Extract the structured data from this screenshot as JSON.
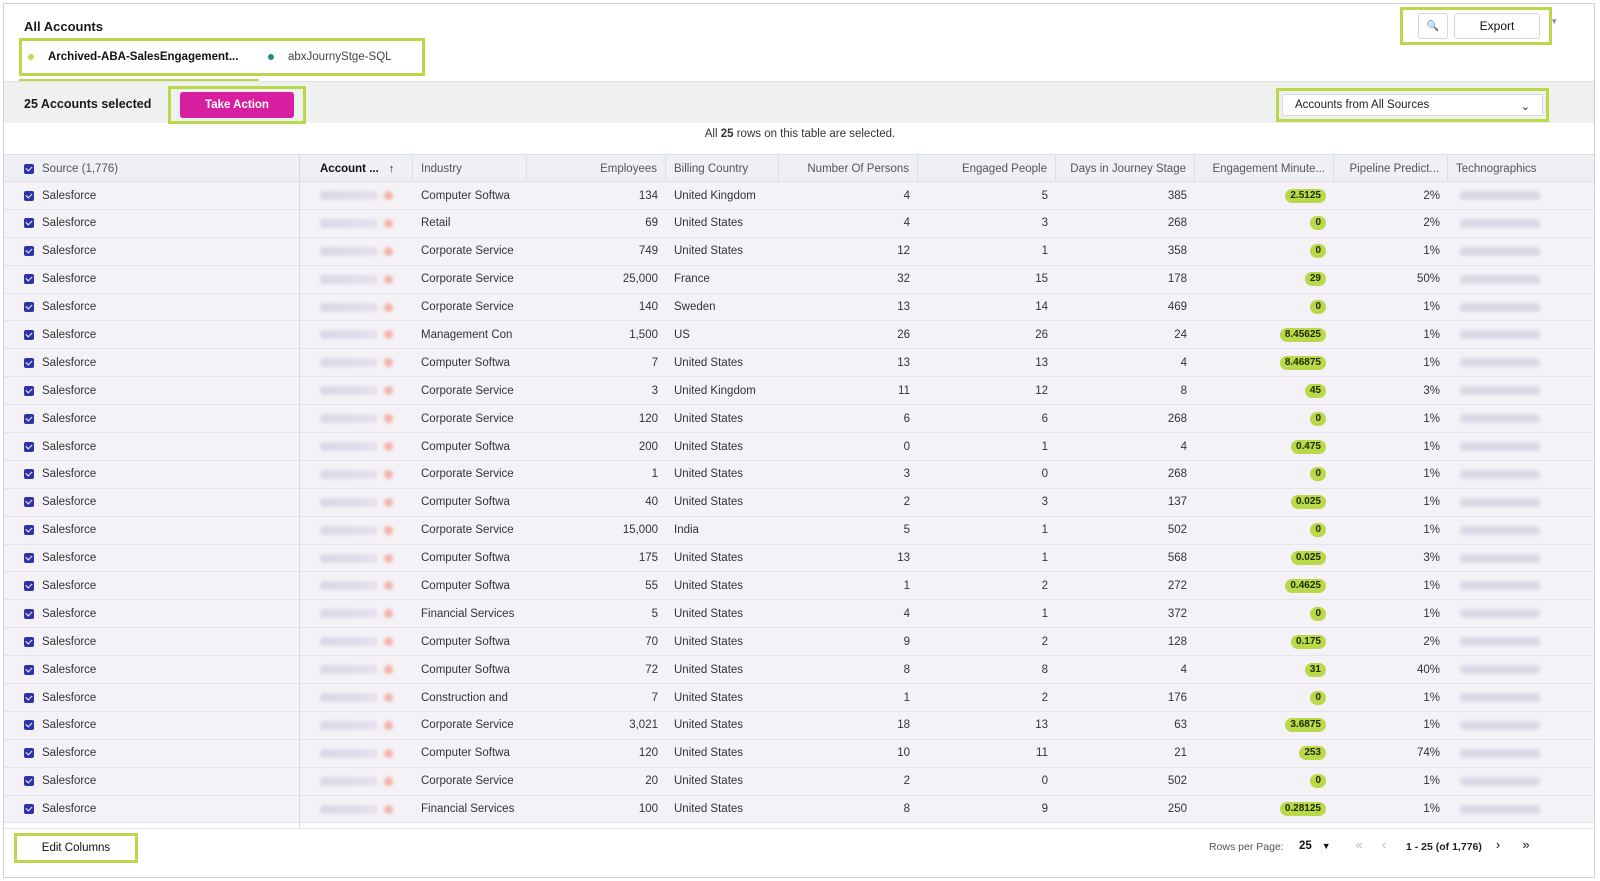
{
  "header": {
    "title": "All Accounts",
    "tabs": [
      {
        "label": "Archived-ABA-SalesEngagement...",
        "dot_color": "#c6d94a",
        "active": true
      },
      {
        "label": "abxJournyStge-SQL",
        "dot_color": "#1f8a8a",
        "active": false
      }
    ],
    "search_icon": "🔍",
    "export_label": "Export",
    "corner_icon": "▾"
  },
  "action_bar": {
    "selected_text": "25 Accounts selected",
    "take_action_label": "Take Action",
    "source_select_value": "Accounts from All Sources",
    "source_select_chevron": "⌄"
  },
  "selection_info": {
    "prefix": "All",
    "count": "25",
    "suffix": "rows on this table are selected."
  },
  "table": {
    "columns": [
      {
        "key": "source",
        "label": "Source (1,776)"
      },
      {
        "key": "account",
        "label": "Account ...",
        "sort_icon": "↑"
      },
      {
        "key": "industry",
        "label": "Industry"
      },
      {
        "key": "employees",
        "label": "Employees"
      },
      {
        "key": "country",
        "label": "Billing Country"
      },
      {
        "key": "persons",
        "label": "Number Of Persons"
      },
      {
        "key": "engaged",
        "label": "Engaged People"
      },
      {
        "key": "days",
        "label": "Days in Journey Stage"
      },
      {
        "key": "minutes",
        "label": "Engagement Minute..."
      },
      {
        "key": "pipeline",
        "label": "Pipeline Predict..."
      },
      {
        "key": "techno",
        "label": "Technographics"
      }
    ],
    "rows": [
      {
        "source": "Salesforce",
        "industry": "Computer Softwa",
        "employees": "134",
        "country": "United Kingdom",
        "persons": "4",
        "engaged": "5",
        "days": "385",
        "minutes": "2.5125",
        "pipeline": "2%"
      },
      {
        "source": "Salesforce",
        "industry": "Retail",
        "employees": "69",
        "country": "United States",
        "persons": "4",
        "engaged": "3",
        "days": "268",
        "minutes": "0",
        "pipeline": "2%"
      },
      {
        "source": "Salesforce",
        "industry": "Corporate Service",
        "employees": "749",
        "country": "United States",
        "persons": "12",
        "engaged": "1",
        "days": "358",
        "minutes": "0",
        "pipeline": "1%"
      },
      {
        "source": "Salesforce",
        "industry": "Corporate Service",
        "employees": "25,000",
        "country": "France",
        "persons": "32",
        "engaged": "15",
        "days": "178",
        "minutes": "29",
        "pipeline": "50%"
      },
      {
        "source": "Salesforce",
        "industry": "Corporate Service",
        "employees": "140",
        "country": "Sweden",
        "persons": "13",
        "engaged": "14",
        "days": "469",
        "minutes": "0",
        "pipeline": "1%"
      },
      {
        "source": "Salesforce",
        "industry": "Management Con",
        "employees": "1,500",
        "country": "US",
        "persons": "26",
        "engaged": "26",
        "days": "24",
        "minutes": "8.45625",
        "pipeline": "1%"
      },
      {
        "source": "Salesforce",
        "industry": "Computer Softwa",
        "employees": "7",
        "country": "United States",
        "persons": "13",
        "engaged": "13",
        "days": "4",
        "minutes": "8.46875",
        "pipeline": "1%"
      },
      {
        "source": "Salesforce",
        "industry": "Corporate Service",
        "employees": "3",
        "country": "United Kingdom",
        "persons": "11",
        "engaged": "12",
        "days": "8",
        "minutes": "45",
        "pipeline": "3%"
      },
      {
        "source": "Salesforce",
        "industry": "Corporate Service",
        "employees": "120",
        "country": "United States",
        "persons": "6",
        "engaged": "6",
        "days": "268",
        "minutes": "0",
        "pipeline": "1%"
      },
      {
        "source": "Salesforce",
        "industry": "Computer Softwa",
        "employees": "200",
        "country": "United States",
        "persons": "0",
        "engaged": "1",
        "days": "4",
        "minutes": "0.475",
        "pipeline": "1%"
      },
      {
        "source": "Salesforce",
        "industry": "Corporate Service",
        "employees": "1",
        "country": "United States",
        "persons": "3",
        "engaged": "0",
        "days": "268",
        "minutes": "0",
        "pipeline": "1%"
      },
      {
        "source": "Salesforce",
        "industry": "Computer Softwa",
        "employees": "40",
        "country": "United States",
        "persons": "2",
        "engaged": "3",
        "days": "137",
        "minutes": "0.025",
        "pipeline": "1%"
      },
      {
        "source": "Salesforce",
        "industry": "Corporate Service",
        "employees": "15,000",
        "country": "India",
        "persons": "5",
        "engaged": "1",
        "days": "502",
        "minutes": "0",
        "pipeline": "1%"
      },
      {
        "source": "Salesforce",
        "industry": "Computer Softwa",
        "employees": "175",
        "country": "United States",
        "persons": "13",
        "engaged": "1",
        "days": "568",
        "minutes": "0.025",
        "pipeline": "3%"
      },
      {
        "source": "Salesforce",
        "industry": "Computer Softwa",
        "employees": "55",
        "country": "United States",
        "persons": "1",
        "engaged": "2",
        "days": "272",
        "minutes": "0.4625",
        "pipeline": "1%"
      },
      {
        "source": "Salesforce",
        "industry": "Financial Services",
        "employees": "5",
        "country": "United States",
        "persons": "4",
        "engaged": "1",
        "days": "372",
        "minutes": "0",
        "pipeline": "1%"
      },
      {
        "source": "Salesforce",
        "industry": "Computer Softwa",
        "employees": "70",
        "country": "United States",
        "persons": "9",
        "engaged": "2",
        "days": "128",
        "minutes": "0.175",
        "pipeline": "2%"
      },
      {
        "source": "Salesforce",
        "industry": "Computer Softwa",
        "employees": "72",
        "country": "United States",
        "persons": "8",
        "engaged": "8",
        "days": "4",
        "minutes": "31",
        "pipeline": "40%"
      },
      {
        "source": "Salesforce",
        "industry": "Construction and",
        "employees": "7",
        "country": "United States",
        "persons": "1",
        "engaged": "2",
        "days": "176",
        "minutes": "0",
        "pipeline": "1%"
      },
      {
        "source": "Salesforce",
        "industry": "Corporate Service",
        "employees": "3,021",
        "country": "United States",
        "persons": "18",
        "engaged": "13",
        "days": "63",
        "minutes": "3.6875",
        "pipeline": "1%"
      },
      {
        "source": "Salesforce",
        "industry": "Computer Softwa",
        "employees": "120",
        "country": "United States",
        "persons": "10",
        "engaged": "11",
        "days": "21",
        "minutes": "253",
        "pipeline": "74%"
      },
      {
        "source": "Salesforce",
        "industry": "Corporate Service",
        "employees": "20",
        "country": "United States",
        "persons": "2",
        "engaged": "0",
        "days": "502",
        "minutes": "0",
        "pipeline": "1%"
      },
      {
        "source": "Salesforce",
        "industry": "Financial Services",
        "employees": "100",
        "country": "United States",
        "persons": "8",
        "engaged": "9",
        "days": "250",
        "minutes": "0.28125",
        "pipeline": "1%"
      }
    ]
  },
  "footer": {
    "edit_columns_label": "Edit Columns",
    "rows_per_page_label": "Rows per Page:",
    "rows_per_page_value": "25",
    "rows_per_page_caret": "▼",
    "page_range": "1 - 25 (of 1,776)",
    "first_icon": "«",
    "prev_icon": "‹",
    "next_icon": "›",
    "last_icon": "»"
  },
  "colors": {
    "accent_lime": "#b9d94a",
    "take_action": "#d81ea0",
    "checkbox": "#2d33a8"
  }
}
